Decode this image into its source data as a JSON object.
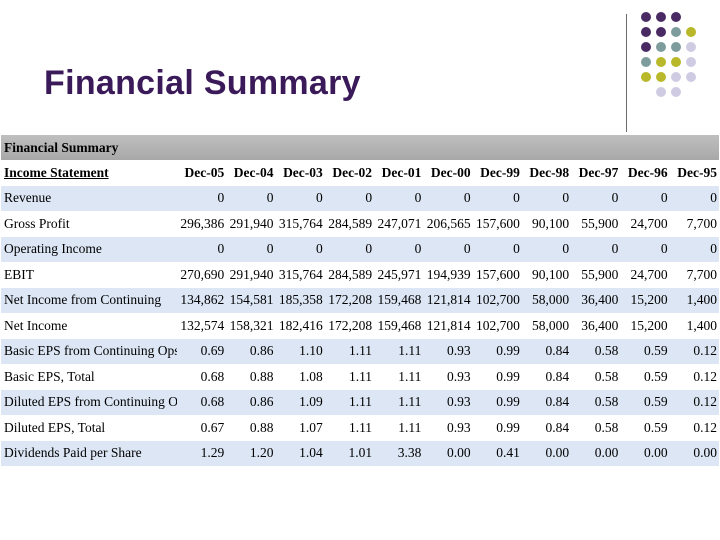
{
  "slide": {
    "title": "Financial Summary"
  },
  "table": {
    "banner": "Financial Summary",
    "header_label": "Income Statement",
    "years": [
      "Dec-05",
      "Dec-04",
      "Dec-03",
      "Dec-02",
      "Dec-01",
      "Dec-00",
      "Dec-99",
      "Dec-98",
      "Dec-97",
      "Dec-96",
      "Dec-95"
    ],
    "rows": [
      {
        "label": "Revenue",
        "values": [
          "0",
          "0",
          "0",
          "0",
          "0",
          "0",
          "0",
          "0",
          "0",
          "0",
          "0"
        ]
      },
      {
        "label": "Gross Profit",
        "values": [
          "296,386",
          "291,940",
          "315,764",
          "284,589",
          "247,071",
          "206,565",
          "157,600",
          "90,100",
          "55,900",
          "24,700",
          "7,700"
        ]
      },
      {
        "label": "Operating Income",
        "values": [
          "0",
          "0",
          "0",
          "0",
          "0",
          "0",
          "0",
          "0",
          "0",
          "0",
          "0"
        ]
      },
      {
        "label": "EBIT",
        "values": [
          "270,690",
          "291,940",
          "315,764",
          "284,589",
          "245,971",
          "194,939",
          "157,600",
          "90,100",
          "55,900",
          "24,700",
          "7,700"
        ]
      },
      {
        "label": "Net Income from Continuing",
        "values": [
          "134,862",
          "154,581",
          "185,358",
          "172,208",
          "159,468",
          "121,814",
          "102,700",
          "58,000",
          "36,400",
          "15,200",
          "1,400"
        ]
      },
      {
        "label": "Net Income",
        "values": [
          "132,574",
          "158,321",
          "182,416",
          "172,208",
          "159,468",
          "121,814",
          "102,700",
          "58,000",
          "36,400",
          "15,200",
          "1,400"
        ]
      },
      {
        "label": "Basic EPS from Continuing Ops.",
        "values": [
          "0.69",
          "0.86",
          "1.10",
          "1.11",
          "1.11",
          "0.93",
          "0.99",
          "0.84",
          "0.58",
          "0.59",
          "0.12"
        ]
      },
      {
        "label": "Basic EPS, Total",
        "values": [
          "0.68",
          "0.88",
          "1.08",
          "1.11",
          "1.11",
          "0.93",
          "0.99",
          "0.84",
          "0.58",
          "0.59",
          "0.12"
        ]
      },
      {
        "label": "Diluted EPS from Continuing Ops.",
        "values": [
          "0.68",
          "0.86",
          "1.09",
          "1.11",
          "1.11",
          "0.93",
          "0.99",
          "0.84",
          "0.58",
          "0.59",
          "0.12"
        ]
      },
      {
        "label": "Diluted EPS, Total",
        "values": [
          "0.67",
          "0.88",
          "1.07",
          "1.11",
          "1.11",
          "0.93",
          "0.99",
          "0.84",
          "0.58",
          "0.59",
          "0.12"
        ]
      },
      {
        "label": "Dividends Paid per Share",
        "values": [
          "1.29",
          "1.20",
          "1.04",
          "1.01",
          "3.38",
          "0.00",
          "0.41",
          "0.00",
          "0.00",
          "0.00",
          "0.00"
        ]
      }
    ]
  },
  "decor": {
    "colors": {
      "purple": "#4a2a63",
      "teal": "#7f9c9c",
      "olive": "#b8b82a",
      "lavender": "#cfcbe3"
    },
    "dot_grid": [
      [
        "purple",
        "purple",
        "purple",
        null
      ],
      [
        "purple",
        "purple",
        "teal",
        "olive"
      ],
      [
        "purple",
        "teal",
        "teal",
        "lavender"
      ],
      [
        "teal",
        "olive",
        "olive",
        "lavender"
      ],
      [
        "olive",
        "olive",
        "lavender",
        "lavender"
      ],
      [
        null,
        "lavender",
        "lavender",
        null
      ]
    ]
  }
}
